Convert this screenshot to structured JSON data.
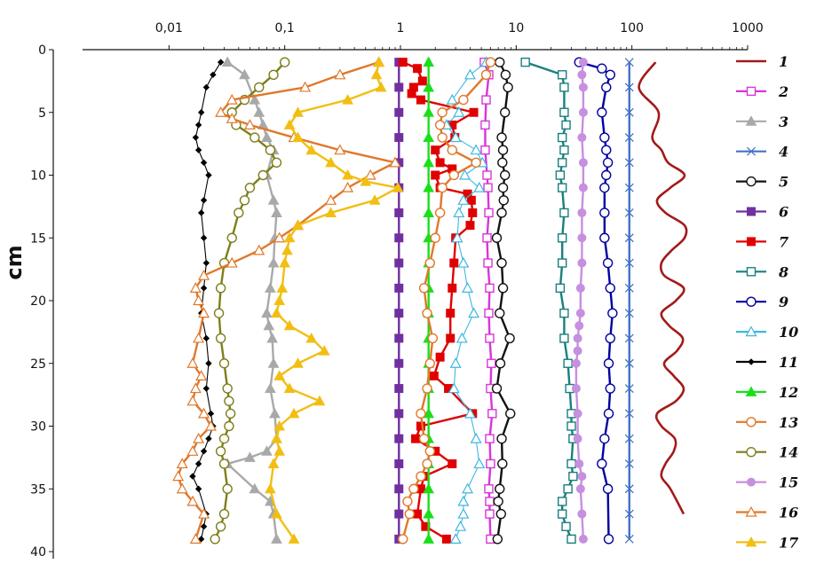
{
  "chart_data": {
    "type": "line",
    "x_scale": "log",
    "xlim": [
      0.001,
      1000
    ],
    "ylim": [
      0,
      40
    ],
    "x_ticks": [
      0.01,
      0.1,
      1,
      10,
      100,
      1000
    ],
    "x_tick_labels": [
      "0,01",
      "0,1",
      "1",
      "10",
      "100",
      "1000"
    ],
    "y_ticks": [
      0,
      5,
      10,
      15,
      20,
      25,
      30,
      35,
      40
    ],
    "y_tick_labels": [
      "0",
      "5",
      "10",
      "15",
      "20",
      "25",
      "30",
      "35",
      "40"
    ],
    "ylabel": "cm",
    "xlabel": "",
    "y_reversed": true,
    "x_axis_position": "top",
    "grid": false,
    "legend_position": "right",
    "series": [
      {
        "name": "1",
        "color": "#A31A1A",
        "marker": "none",
        "smooth": true,
        "x": [
          160,
          115,
          170,
          150,
          180,
          205,
          285,
          215,
          165,
          195,
          285,
          285,
          220,
          180,
          190,
          280,
          240,
          180,
          210,
          275,
          245,
          190,
          230,
          280,
          240,
          165,
          180,
          235,
          230,
          195,
          180,
          215,
          280
        ],
        "y": [
          1,
          3,
          5,
          7,
          8,
          9,
          10,
          11,
          12,
          13,
          14,
          15,
          16,
          17,
          18,
          19,
          20,
          21,
          22,
          23,
          24,
          25,
          26,
          27,
          28,
          29,
          30,
          31,
          32,
          33,
          34,
          35,
          37
        ]
      },
      {
        "name": "2",
        "color": "#D935D9",
        "marker": "square-open",
        "smooth": false,
        "x": [
          5.3,
          5.8,
          5.5,
          5.4,
          5.4,
          5.6,
          5.7,
          5.8,
          5.6,
          5.7,
          5.9,
          5.8,
          5.9,
          6.1,
          6.0,
          6.2,
          5.9,
          6.0,
          5.8,
          5.9,
          5.9,
          6.0
        ],
        "y": [
          1,
          2,
          4,
          6,
          8,
          10,
          11,
          13,
          15,
          17,
          19,
          21,
          23,
          25,
          27,
          29,
          31,
          33,
          35,
          36,
          37,
          39
        ]
      },
      {
        "name": "3",
        "color": "#A9A9A9",
        "marker": "triangle-filled",
        "smooth": false,
        "x": [
          0.032,
          0.045,
          0.055,
          0.06,
          0.065,
          0.07,
          0.08,
          0.07,
          0.08,
          0.085,
          0.082,
          0.08,
          0.075,
          0.07,
          0.073,
          0.078,
          0.08,
          0.075,
          0.082,
          0.085,
          0.07,
          0.05,
          0.032,
          0.055,
          0.075,
          0.08,
          0.085
        ],
        "y": [
          1,
          2,
          4,
          5,
          6,
          7,
          8,
          10,
          12,
          13,
          15,
          17,
          19,
          21,
          22,
          23,
          25,
          27,
          29,
          31,
          32,
          32.5,
          33,
          35,
          36,
          37,
          39
        ]
      },
      {
        "name": "4",
        "color": "#4472C4",
        "marker": "x",
        "smooth": false,
        "x": [
          95,
          95,
          95,
          95,
          95,
          95,
          95,
          95,
          95,
          95,
          95,
          95,
          95,
          95,
          95,
          95,
          95,
          95,
          95,
          95
        ],
        "y": [
          1,
          3,
          5,
          7,
          9,
          11,
          13,
          15,
          17,
          19,
          21,
          23,
          25,
          27,
          29,
          31,
          33,
          35,
          37,
          39
        ]
      },
      {
        "name": "5",
        "color": "#111111",
        "marker": "circle-open",
        "smooth": false,
        "x": [
          7.2,
          8.1,
          8.5,
          8.0,
          7.5,
          7.7,
          7.6,
          8.0,
          7.7,
          7.8,
          7.5,
          6.8,
          7.5,
          7.7,
          7.2,
          8.8,
          7.3,
          6.8,
          8.9,
          7.5,
          7.6,
          7.2,
          7.0,
          7.4,
          6.9
        ],
        "y": [
          1,
          2,
          3,
          5,
          7,
          8,
          9,
          10,
          11,
          12,
          13,
          15,
          17,
          19,
          21,
          23,
          25,
          27,
          29,
          31,
          33,
          35,
          36,
          37,
          39
        ]
      },
      {
        "name": "6",
        "color": "#7030A0",
        "marker": "square-filled",
        "smooth": false,
        "x": [
          0.97,
          0.97,
          0.97,
          0.97,
          0.97,
          0.97,
          0.97,
          0.97,
          0.97,
          0.97,
          0.97,
          0.97,
          0.97,
          0.97,
          0.97,
          0.97,
          0.97,
          0.97,
          0.97,
          0.97
        ],
        "y": [
          1,
          3,
          5,
          7,
          9,
          11,
          13,
          15,
          17,
          19,
          21,
          23,
          25,
          27,
          29,
          31,
          33,
          35,
          37,
          39
        ]
      },
      {
        "name": "7",
        "color": "#E00000",
        "marker": "square-filled",
        "smooth": false,
        "x": [
          1.05,
          1.4,
          1.55,
          1.3,
          1.25,
          1.5,
          4.3,
          2.8,
          2.95,
          2.0,
          2.2,
          2.8,
          2.0,
          2.2,
          3.8,
          4.1,
          4.2,
          4.0,
          3.0,
          2.9,
          2.8,
          2.7,
          2.7,
          2.2,
          1.95,
          2.6,
          4.2,
          1.5,
          1.35,
          2.0,
          2.8,
          1.6,
          1.5,
          1.4,
          1.65,
          2.5
        ],
        "y": [
          1,
          1.5,
          2.5,
          3,
          3.5,
          4,
          5,
          6,
          7,
          8,
          9,
          9.5,
          10,
          11,
          11.5,
          12,
          13,
          14,
          15,
          17,
          19,
          21,
          23,
          24.5,
          26,
          27,
          29,
          30,
          31,
          32,
          33,
          34,
          35,
          37,
          38,
          39
        ]
      },
      {
        "name": "8",
        "color": "#1A7F7F",
        "marker": "square-open",
        "smooth": false,
        "x": [
          12,
          25,
          26,
          26,
          27,
          25,
          26,
          25,
          24,
          25,
          26,
          25,
          25,
          24,
          26,
          26,
          28,
          29,
          30,
          30,
          31,
          30,
          31,
          28,
          25,
          25,
          27,
          30
        ],
        "y": [
          1,
          2,
          3,
          5,
          6,
          7,
          8,
          9,
          10,
          11,
          13,
          15,
          17,
          19,
          21,
          23,
          25,
          27,
          29,
          30,
          31,
          33,
          34,
          35,
          36,
          37,
          38,
          39
        ]
      },
      {
        "name": "9",
        "color": "#0000A0",
        "marker": "circle-open",
        "smooth": false,
        "x": [
          35,
          55,
          65,
          60,
          55,
          58,
          60,
          62,
          60,
          58,
          58,
          58,
          62,
          65,
          68,
          65,
          63,
          65,
          63,
          58,
          55,
          62,
          63
        ],
        "y": [
          1,
          1.5,
          2,
          3,
          5,
          7,
          8,
          9,
          10,
          11,
          13,
          15,
          17,
          19,
          21,
          23,
          25,
          27,
          29,
          31,
          33,
          35,
          39
        ]
      },
      {
        "name": "10",
        "color": "#3FB7E0",
        "marker": "triangle-open",
        "smooth": false,
        "x": [
          5.5,
          4.0,
          2.8,
          3.2,
          2.5,
          3.0,
          4.5,
          5.1,
          3.6,
          4.8,
          3.5,
          3.2,
          3.1,
          3.5,
          3.8,
          4.3,
          3.4,
          3.0,
          2.9,
          4.0,
          4.5,
          4.8,
          3.8,
          3.5,
          3.5,
          3.3,
          3.0
        ],
        "y": [
          1,
          2,
          4,
          5,
          6,
          7,
          8,
          9,
          10,
          11,
          12,
          13,
          15,
          17,
          19,
          21,
          23,
          25,
          27,
          29,
          31,
          33,
          35,
          36,
          37,
          38,
          39
        ]
      },
      {
        "name": "11",
        "color": "#000000",
        "marker": "diamond-filled",
        "smooth": false,
        "x": [
          0.028,
          0.024,
          0.021,
          0.019,
          0.018,
          0.017,
          0.018,
          0.02,
          0.022,
          0.02,
          0.019,
          0.02,
          0.021,
          0.02,
          0.019,
          0.021,
          0.022,
          0.021,
          0.023,
          0.024,
          0.022,
          0.02,
          0.018,
          0.016,
          0.018,
          0.021,
          0.02,
          0.019
        ],
        "y": [
          1,
          2,
          3,
          5,
          6,
          7,
          8,
          9,
          10,
          12,
          13,
          15,
          17,
          19,
          21,
          23,
          25,
          27,
          29,
          30,
          31,
          32,
          33,
          34,
          35,
          37,
          38,
          39
        ]
      },
      {
        "name": "12",
        "color": "#1ADF1A",
        "marker": "triangle-filled",
        "smooth": false,
        "x": [
          1.75,
          1.75,
          1.75,
          1.75,
          1.75,
          1.75,
          1.75,
          1.75,
          1.75,
          1.75,
          1.75,
          1.75,
          1.75,
          1.75,
          1.75,
          1.75,
          1.75,
          1.75,
          1.75,
          1.75
        ],
        "y": [
          1,
          3,
          5,
          7,
          9,
          11,
          13,
          15,
          17,
          19,
          21,
          23,
          25,
          27,
          29,
          31,
          33,
          35,
          37,
          39
        ]
      },
      {
        "name": "13",
        "color": "#E0782A",
        "marker": "circle-open",
        "smooth": false,
        "x": [
          6.0,
          5.5,
          3.5,
          2.3,
          2.2,
          2.3,
          2.8,
          4.5,
          2.9,
          2.3,
          2.2,
          2.0,
          1.8,
          1.6,
          1.7,
          1.9,
          1.8,
          1.7,
          1.5,
          1.6,
          1.8,
          1.7,
          1.5,
          1.3,
          1.15,
          1.2,
          1.05
        ],
        "y": [
          1,
          2,
          4,
          5,
          6,
          7,
          8,
          9,
          10,
          11,
          13,
          15,
          17,
          19,
          21,
          23,
          25,
          27,
          29,
          31,
          32,
          33,
          34,
          35,
          36,
          37,
          39
        ]
      },
      {
        "name": "14",
        "color": "#7E7E1A",
        "marker": "circle-open",
        "smooth": false,
        "x": [
          0.1,
          0.08,
          0.06,
          0.045,
          0.035,
          0.038,
          0.055,
          0.075,
          0.085,
          0.065,
          0.05,
          0.045,
          0.04,
          0.035,
          0.03,
          0.028,
          0.027,
          0.028,
          0.03,
          0.032,
          0.033,
          0.034,
          0.033,
          0.03,
          0.028,
          0.03,
          0.032,
          0.03,
          0.028,
          0.025
        ],
        "y": [
          1,
          2,
          3,
          4,
          5,
          6,
          7,
          8,
          9,
          10,
          11,
          12,
          13,
          15,
          17,
          19,
          21,
          23,
          25,
          27,
          28,
          29,
          30,
          31,
          32,
          33,
          35,
          37,
          38,
          39
        ]
      },
      {
        "name": "15",
        "color": "#C78FE0",
        "marker": "circle-filled",
        "smooth": false,
        "x": [
          38,
          37,
          38,
          38,
          37,
          38,
          38,
          37,
          37,
          37,
          36,
          36,
          35,
          34,
          34,
          33,
          33,
          34,
          34,
          35,
          37,
          36,
          37,
          38
        ],
        "y": [
          1,
          2,
          3,
          5,
          7,
          9,
          11,
          13,
          15,
          17,
          19,
          21,
          22,
          23,
          24,
          25,
          27,
          29,
          31,
          33,
          34,
          35,
          37,
          39
        ]
      },
      {
        "name": "16",
        "color": "#E0782A",
        "marker": "triangle-open",
        "smooth": false,
        "x": [
          0.65,
          0.3,
          0.15,
          0.035,
          0.028,
          0.035,
          0.05,
          0.12,
          0.3,
          0.9,
          0.55,
          0.35,
          0.25,
          0.13,
          0.09,
          0.06,
          0.035,
          0.02,
          0.017,
          0.018,
          0.02,
          0.018,
          0.016,
          0.019,
          0.017,
          0.016,
          0.02,
          0.023,
          0.018,
          0.016,
          0.013,
          0.012,
          0.013,
          0.016,
          0.02,
          0.017
        ],
        "y": [
          1,
          2,
          3,
          4,
          5,
          5.5,
          6,
          7,
          8,
          9,
          10,
          11,
          12,
          14,
          15,
          16,
          17,
          18,
          19,
          20,
          21,
          23,
          25,
          26,
          27,
          28,
          29,
          30,
          31,
          32,
          33,
          34,
          35,
          36,
          37,
          39
        ]
      },
      {
        "name": "17",
        "color": "#F2BE12",
        "marker": "triangle-filled",
        "smooth": false,
        "x": [
          0.65,
          0.62,
          0.68,
          0.35,
          0.13,
          0.11,
          0.13,
          0.17,
          0.25,
          0.35,
          0.5,
          0.95,
          0.6,
          0.25,
          0.13,
          0.11,
          0.105,
          0.1,
          0.095,
          0.09,
          0.085,
          0.11,
          0.17,
          0.22,
          0.13,
          0.09,
          0.11,
          0.2,
          0.12,
          0.09,
          0.085,
          0.09,
          0.08,
          0.075,
          0.085,
          0.12
        ],
        "y": [
          1,
          2,
          3,
          4,
          5,
          6,
          7,
          8,
          9,
          10,
          10.5,
          11,
          12,
          13,
          14,
          15,
          16,
          17,
          19,
          20,
          21,
          22,
          23,
          24,
          25,
          26,
          27,
          28,
          29,
          30,
          31,
          32,
          33,
          35,
          37,
          39
        ]
      }
    ]
  }
}
